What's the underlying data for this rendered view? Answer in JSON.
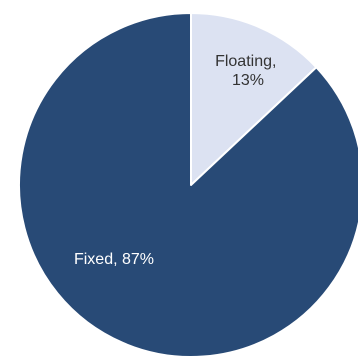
{
  "chart_data": {
    "type": "pie",
    "title": "",
    "categories": [
      "Floating",
      "Fixed"
    ],
    "values": [
      13,
      87
    ],
    "labels": [
      {
        "line1": "Floating,",
        "line2": "13%"
      },
      {
        "line1": "Fixed, 87%",
        "line2": ""
      }
    ],
    "colors": [
      "#dce2f2",
      "#284a76"
    ],
    "label_colors": [
      "#333333",
      "#ffffff"
    ],
    "start": "12 o'clock",
    "direction": "clockwise",
    "legend": "none"
  }
}
